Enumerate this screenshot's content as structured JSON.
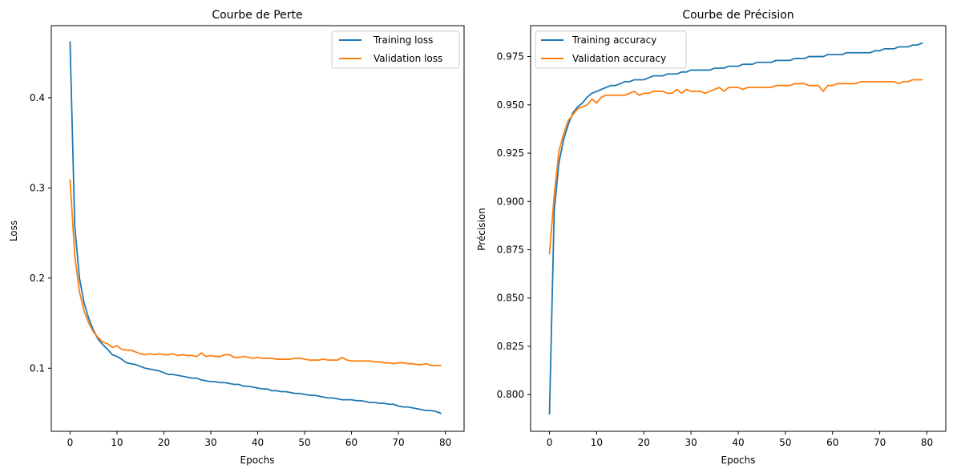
{
  "chart_data": [
    {
      "type": "line",
      "title": "Courbe de Perte",
      "xlabel": "Epochs",
      "ylabel": "Loss",
      "xlim": [
        -4,
        84
      ],
      "ylim": [
        0.03,
        0.48
      ],
      "xticks": [
        0,
        10,
        20,
        30,
        40,
        50,
        60,
        70,
        80
      ],
      "yticks": [
        0.1,
        0.2,
        0.3,
        0.4
      ],
      "ytick_format": 1,
      "grid": false,
      "legend_position": "top-right",
      "series": [
        {
          "name": "Training loss",
          "color": "#1f77b4",
          "values": [
            0.462,
            0.258,
            0.2,
            0.172,
            0.155,
            0.142,
            0.132,
            0.126,
            0.121,
            0.115,
            0.113,
            0.11,
            0.106,
            0.105,
            0.104,
            0.102,
            0.1,
            0.099,
            0.098,
            0.097,
            0.095,
            0.093,
            0.093,
            0.092,
            0.091,
            0.09,
            0.089,
            0.089,
            0.087,
            0.086,
            0.085,
            0.085,
            0.084,
            0.084,
            0.083,
            0.082,
            0.082,
            0.08,
            0.08,
            0.079,
            0.078,
            0.077,
            0.077,
            0.075,
            0.075,
            0.074,
            0.074,
            0.073,
            0.072,
            0.072,
            0.071,
            0.07,
            0.07,
            0.069,
            0.068,
            0.067,
            0.067,
            0.066,
            0.065,
            0.065,
            0.065,
            0.064,
            0.064,
            0.063,
            0.062,
            0.062,
            0.061,
            0.061,
            0.06,
            0.06,
            0.058,
            0.057,
            0.057,
            0.056,
            0.055,
            0.054,
            0.053,
            0.053,
            0.052,
            0.05
          ]
        },
        {
          "name": "Validation loss",
          "color": "#ff7f0e",
          "values": [
            0.309,
            0.225,
            0.185,
            0.163,
            0.15,
            0.14,
            0.134,
            0.129,
            0.127,
            0.123,
            0.125,
            0.121,
            0.12,
            0.12,
            0.118,
            0.116,
            0.115,
            0.116,
            0.115,
            0.116,
            0.115,
            0.115,
            0.116,
            0.114,
            0.115,
            0.114,
            0.114,
            0.113,
            0.117,
            0.113,
            0.114,
            0.113,
            0.113,
            0.115,
            0.115,
            0.112,
            0.112,
            0.113,
            0.112,
            0.111,
            0.112,
            0.111,
            0.111,
            0.111,
            0.11,
            0.11,
            0.11,
            0.11,
            0.111,
            0.111,
            0.11,
            0.109,
            0.109,
            0.109,
            0.11,
            0.109,
            0.109,
            0.109,
            0.112,
            0.109,
            0.108,
            0.108,
            0.108,
            0.108,
            0.108,
            0.107,
            0.107,
            0.106,
            0.106,
            0.105,
            0.106,
            0.106,
            0.105,
            0.105,
            0.104,
            0.104,
            0.105,
            0.103,
            0.103,
            0.103
          ]
        }
      ]
    },
    {
      "type": "line",
      "title": "Courbe de Précision",
      "xlabel": "Epochs",
      "ylabel": "Précision",
      "xlim": [
        -4,
        84
      ],
      "ylim": [
        0.781,
        0.991
      ],
      "xticks": [
        0,
        10,
        20,
        30,
        40,
        50,
        60,
        70,
        80
      ],
      "yticks": [
        0.8,
        0.825,
        0.85,
        0.875,
        0.9,
        0.925,
        0.95,
        0.975
      ],
      "ytick_format": 3,
      "grid": false,
      "legend_position": "top-left",
      "series": [
        {
          "name": "Training accuracy",
          "color": "#1f77b4",
          "values": [
            0.79,
            0.895,
            0.92,
            0.932,
            0.94,
            0.946,
            0.949,
            0.951,
            0.954,
            0.956,
            0.957,
            0.958,
            0.959,
            0.96,
            0.96,
            0.961,
            0.962,
            0.962,
            0.963,
            0.963,
            0.963,
            0.964,
            0.965,
            0.965,
            0.965,
            0.966,
            0.966,
            0.966,
            0.967,
            0.967,
            0.968,
            0.968,
            0.968,
            0.968,
            0.968,
            0.969,
            0.969,
            0.969,
            0.97,
            0.97,
            0.97,
            0.971,
            0.971,
            0.971,
            0.972,
            0.972,
            0.972,
            0.972,
            0.973,
            0.973,
            0.973,
            0.973,
            0.974,
            0.974,
            0.974,
            0.975,
            0.975,
            0.975,
            0.975,
            0.976,
            0.976,
            0.976,
            0.976,
            0.977,
            0.977,
            0.977,
            0.977,
            0.977,
            0.977,
            0.978,
            0.978,
            0.979,
            0.979,
            0.979,
            0.98,
            0.98,
            0.98,
            0.981,
            0.981,
            0.982
          ]
        },
        {
          "name": "Validation accuracy",
          "color": "#ff7f0e",
          "values": [
            0.873,
            0.903,
            0.926,
            0.935,
            0.942,
            0.945,
            0.948,
            0.949,
            0.95,
            0.953,
            0.951,
            0.954,
            0.955,
            0.955,
            0.955,
            0.955,
            0.955,
            0.956,
            0.957,
            0.955,
            0.956,
            0.956,
            0.957,
            0.957,
            0.957,
            0.956,
            0.956,
            0.958,
            0.956,
            0.958,
            0.957,
            0.957,
            0.957,
            0.956,
            0.957,
            0.958,
            0.959,
            0.957,
            0.959,
            0.959,
            0.959,
            0.958,
            0.959,
            0.959,
            0.959,
            0.959,
            0.959,
            0.959,
            0.96,
            0.96,
            0.96,
            0.96,
            0.961,
            0.961,
            0.961,
            0.96,
            0.96,
            0.96,
            0.957,
            0.96,
            0.96,
            0.961,
            0.961,
            0.961,
            0.961,
            0.961,
            0.962,
            0.962,
            0.962,
            0.962,
            0.962,
            0.962,
            0.962,
            0.962,
            0.961,
            0.962,
            0.962,
            0.963,
            0.963,
            0.963
          ]
        }
      ]
    }
  ]
}
